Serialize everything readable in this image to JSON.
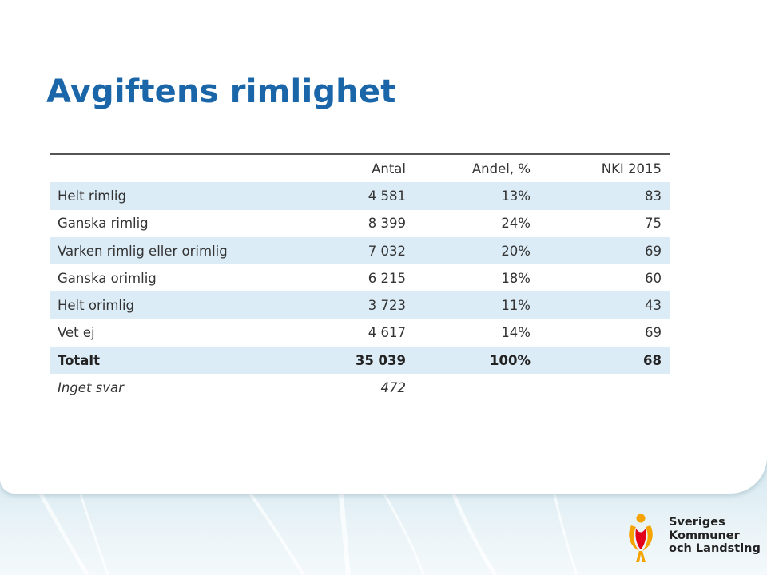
{
  "slide": {
    "title": "Avgiftens rimlighet"
  },
  "table": {
    "headers": [
      "",
      "Antal",
      "Andel, %",
      "NKI 2015"
    ],
    "rows": [
      [
        "Helt rimlig",
        "4 581",
        "13%",
        "83"
      ],
      [
        "Ganska rimlig",
        "8 399",
        "24%",
        "75"
      ],
      [
        "Varken rimlig eller orimlig",
        "7 032",
        "20%",
        "69"
      ],
      [
        "Ganska orimlig",
        "6 215",
        "18%",
        "60"
      ],
      [
        "Helt orimlig",
        "3 723",
        "11%",
        "43"
      ],
      [
        "Vet ej",
        "4 617",
        "14%",
        "69"
      ]
    ],
    "total": [
      "Totalt",
      "35 039",
      "100%",
      "68"
    ],
    "no_answer": [
      "Inget svar",
      "472",
      "",
      ""
    ]
  },
  "logo": {
    "lines": [
      "Sveriges",
      "Kommuner",
      "och Landsting"
    ]
  },
  "colors": {
    "title": "#1a66a8",
    "row_shade": "#dcecf6",
    "logo_orange": "#f5a300"
  }
}
